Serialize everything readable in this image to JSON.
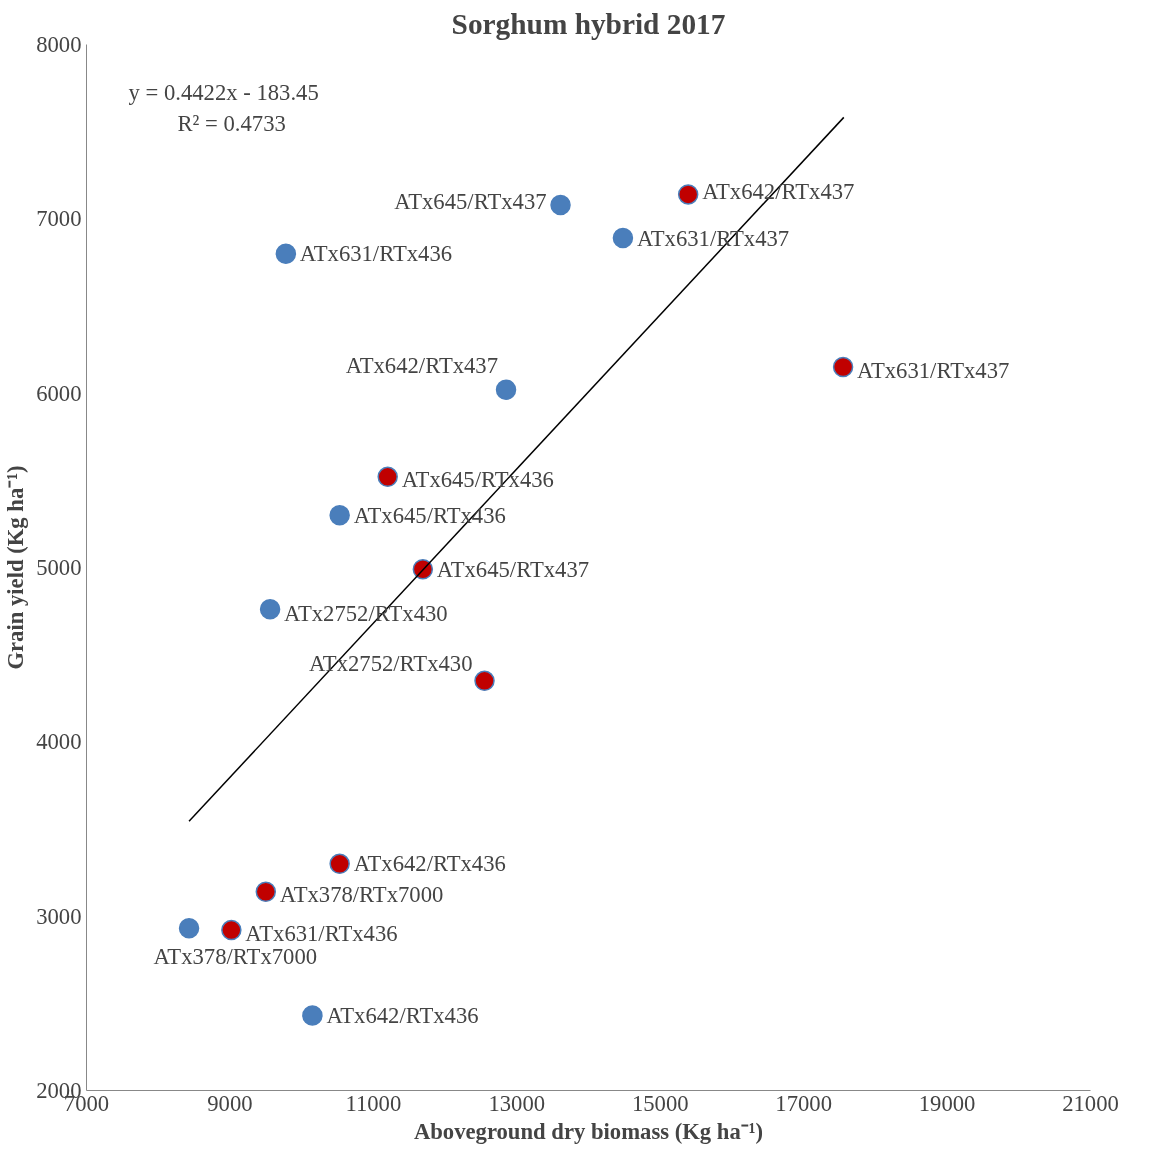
{
  "chart_data": {
    "type": "scatter",
    "title": "Sorghum hybrid 2017",
    "xlabel": "Aboveground dry biomass (Kg ha⁻¹)",
    "ylabel": "Grain yield (Kg ha⁻¹)",
    "xlim": [
      7000,
      21000
    ],
    "xticks": [
      7000,
      9000,
      11000,
      13000,
      15000,
      17000,
      19000,
      21000
    ],
    "ylim": [
      2000,
      8000
    ],
    "yticks": [
      2000,
      3000,
      4000,
      5000,
      6000,
      7000,
      8000
    ],
    "grid": false,
    "marker": "circle",
    "series": [
      {
        "color": "#4a7ebb",
        "x": [
          9780,
          13610,
          14480,
          12850,
          10530,
          9560,
          8430,
          10150
        ],
        "values": [
          6800,
          7080,
          6890,
          6020,
          5300,
          4760,
          2930,
          2430
        ]
      },
      {
        "color": "#c00000",
        "x": [
          15390,
          17550,
          11200,
          11690,
          12550,
          10530,
          9500,
          9020
        ],
        "values": [
          7140,
          6150,
          5520,
          4990,
          4350,
          3300,
          3140,
          2920
        ]
      },
      {
        "type": "line",
        "marker": "none",
        "color": "#000000",
        "x": [
          8430,
          17560
        ],
        "values": [
          3544,
          7582
        ]
      }
    ],
    "annotations": [
      "y = 0.4422x - 183.45",
      "R² = 0.4733",
      {
        "text": "ATx631/RTx436",
        "x": 9780,
        "y": 6800
      },
      {
        "text": "ATx645/RTx437",
        "x": 13610,
        "y": 7080
      },
      {
        "text": "ATx631/RTx437",
        "x": 14480,
        "y": 6890
      },
      {
        "text": "ATx642/RTx437",
        "x": 12850,
        "y": 6020
      },
      {
        "text": "ATx645/RTx436",
        "x": 10530,
        "y": 5300
      },
      {
        "text": "ATx2752/RTx430",
        "x": 9560,
        "y": 4760
      },
      {
        "text": "ATx378/RTx7000",
        "x": 8430,
        "y": 2930
      },
      {
        "text": "ATx642/RTx436",
        "x": 10150,
        "y": 2430
      },
      {
        "text": "ATx642/RTx437",
        "x": 15390,
        "y": 7140
      },
      {
        "text": "ATx631/RTx437",
        "x": 17550,
        "y": 6150
      },
      {
        "text": "ATx645/RTx436",
        "x": 11200,
        "y": 5520
      },
      {
        "text": "ATx645/RTx437",
        "x": 11690,
        "y": 4990
      },
      {
        "text": "ATx2752/RTx430",
        "x": 12550,
        "y": 4350
      },
      {
        "text": "ATx642/RTx436",
        "x": 10530,
        "y": 3300
      },
      {
        "text": "ATx378/RTx7000",
        "x": 9500,
        "y": 3140
      },
      {
        "text": "ATx631/RTx436",
        "x": 9020,
        "y": 2920
      }
    ]
  }
}
